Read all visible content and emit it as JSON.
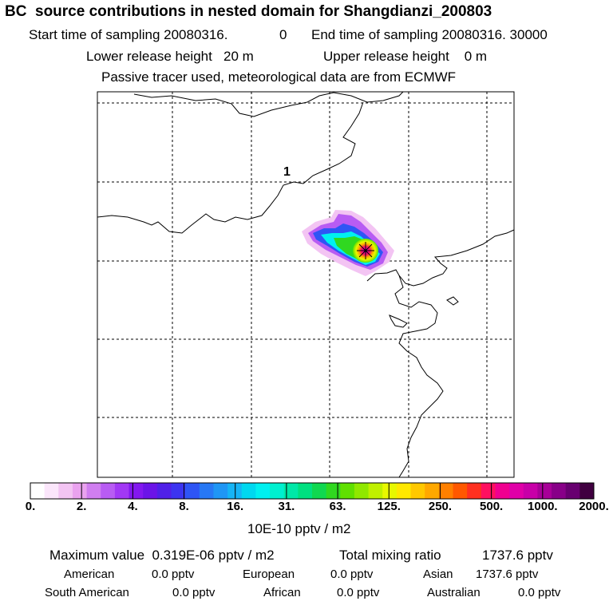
{
  "header": {
    "title": "BC  source contributions in nested domain for Shangdianzi_200803",
    "start_label": "Start time of sampling 20080316.",
    "start_hhmmss": "0",
    "end_label": "End time of sampling 20080316. 30000",
    "lower_label": "Lower release height   20 m",
    "upper_label": "Upper release height    0 m",
    "tracer_note": "Passive tracer used, meteorological data are from ECMWF"
  },
  "map": {
    "contour_label": "1",
    "receptor_marker": "star-icon"
  },
  "colorbar": {
    "colors": [
      "#ffffff",
      "#fbe6fb",
      "#f3c4f3",
      "#eaa2ef",
      "#d07ef0",
      "#b85cf3",
      "#a238f5",
      "#8318f0",
      "#6b14e8",
      "#5020e8",
      "#3c34f0",
      "#2e55f5",
      "#2778f5",
      "#1f96f5",
      "#16b4f5",
      "#00d8f0",
      "#00f0f0",
      "#00f0d0",
      "#00e8a8",
      "#00e080",
      "#10d850",
      "#30d820",
      "#60e000",
      "#90e800",
      "#c0f000",
      "#e8f800",
      "#ffe800",
      "#ffc800",
      "#ffa800",
      "#ff8000",
      "#ff5800",
      "#ff3020",
      "#ff1060",
      "#f00090",
      "#e000a8",
      "#c800a8",
      "#a80098",
      "#880088",
      "#680070",
      "#400040"
    ],
    "ticks": [
      "0.",
      "2.",
      "4.",
      "8.",
      "16.",
      "31.",
      "63.",
      "125.",
      "250.",
      "500.",
      "1000.",
      "2000."
    ],
    "units": "10E-10 pptv / m2"
  },
  "stats": {
    "max_label": "Maximum value  0.319E-06 pptv / m2",
    "total_label": "Total mixing ratio",
    "total_value": "1737.6 pptv",
    "rows": [
      [
        {
          "label": "American",
          "value": "0.0 pptv"
        },
        {
          "label": "European",
          "value": "0.0 pptv"
        },
        {
          "label": "Asian",
          "value": "1737.6 pptv"
        }
      ],
      [
        {
          "label": "South American",
          "value": "0.0 pptv"
        },
        {
          "label": "African",
          "value": "0.0 pptv"
        },
        {
          "label": "Australian",
          "value": "0.0 pptv"
        }
      ]
    ]
  }
}
